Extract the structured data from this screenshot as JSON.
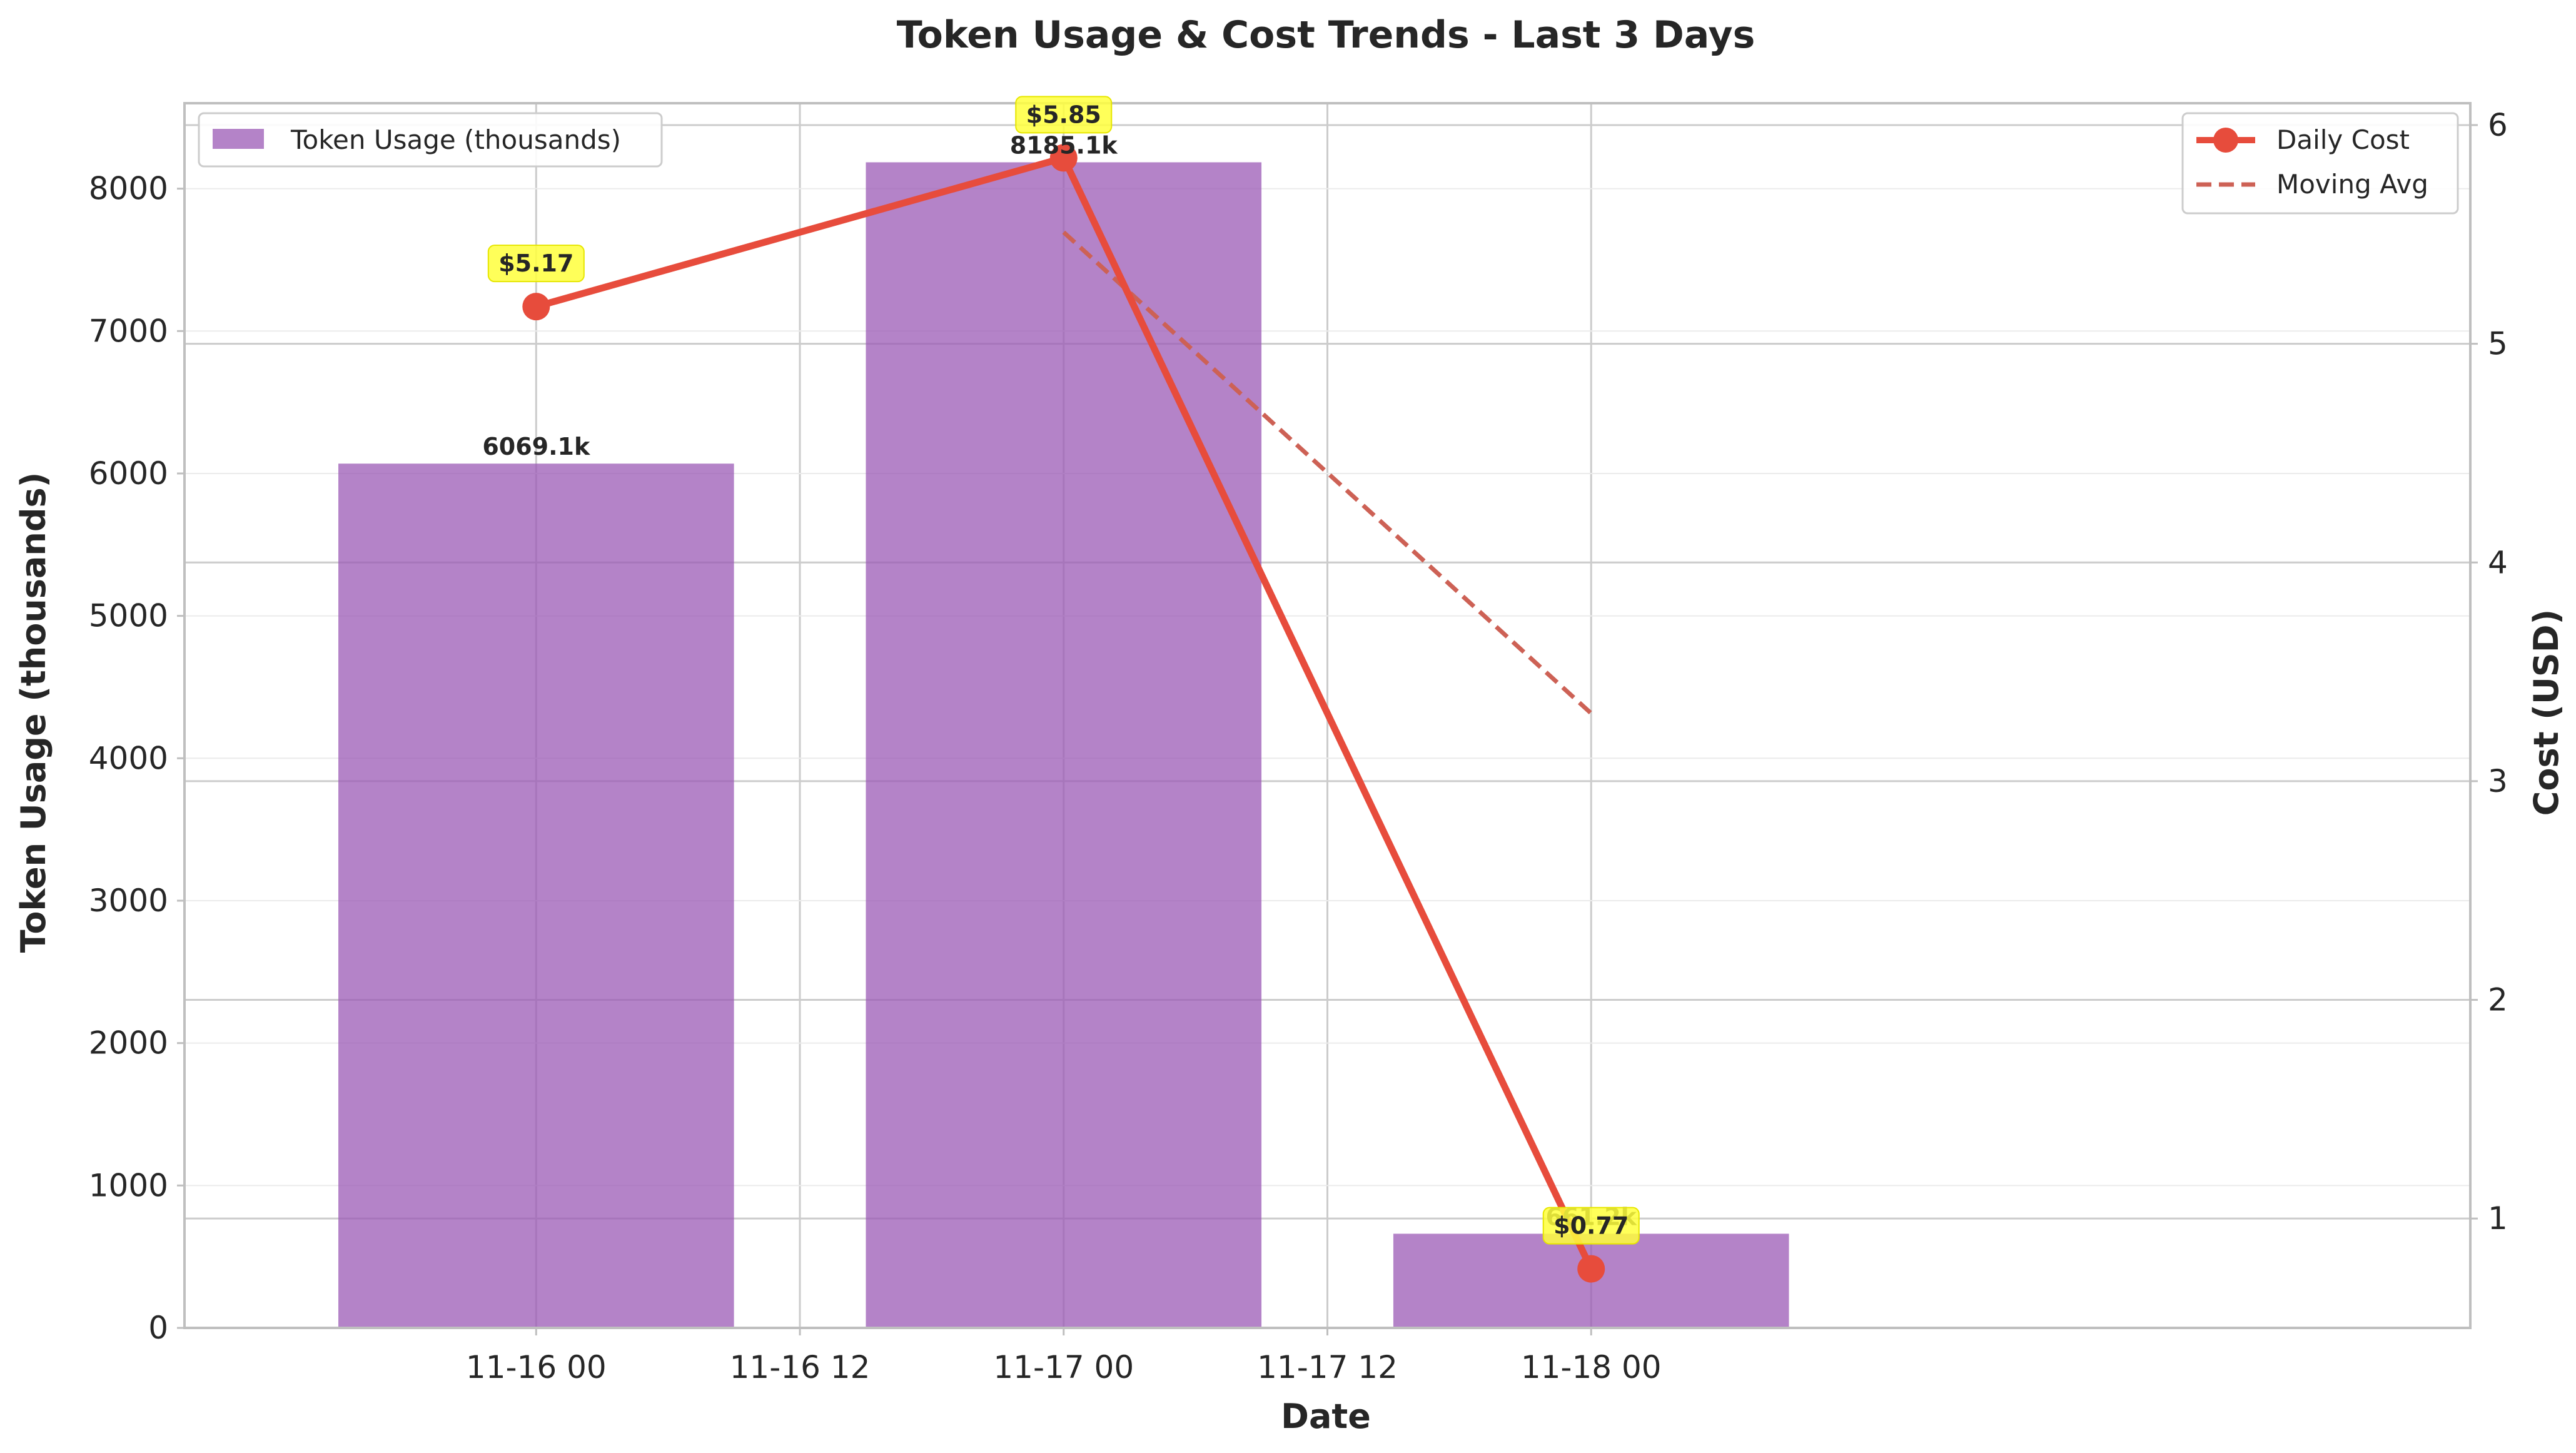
{
  "chart_data": {
    "type": "bar+line",
    "title": "Token Usage & Cost Trends - Last 3 Days",
    "xlabel": "Date",
    "ylabel_left": "Token Usage (thousands)",
    "ylabel_right": "Cost (USD)",
    "x_range_hours": [
      -16,
      88
    ],
    "x_ticks": [
      {
        "label": "11-16 00",
        "hour": 0
      },
      {
        "label": "11-16 12",
        "hour": 12
      },
      {
        "label": "11-17 00",
        "hour": 24
      },
      {
        "label": "11-17 12",
        "hour": 36
      },
      {
        "label": "11-18 00",
        "hour": 48
      }
    ],
    "y_left": {
      "lim": [
        0,
        8600
      ],
      "ticks": [
        0,
        1000,
        2000,
        3000,
        4000,
        5000,
        6000,
        7000,
        8000
      ]
    },
    "y_right": {
      "lim": [
        0.5,
        6.1
      ],
      "ticks": [
        1,
        2,
        3,
        4,
        5,
        6
      ]
    },
    "bars": {
      "name": "Token Usage (thousands)",
      "color": "#9b59b6",
      "x_hours": [
        0,
        24,
        48
      ],
      "values": [
        6069.1,
        8185.1,
        661.2
      ],
      "labels": [
        "6069.1k",
        "8185.1k",
        "661.2k"
      ]
    },
    "daily_cost": {
      "name": "Daily Cost",
      "color": "#e74c3c",
      "x_hours": [
        0,
        24,
        48
      ],
      "values": [
        5.17,
        5.85,
        0.77
      ],
      "labels": [
        "$5.17",
        "$5.85",
        "$0.77"
      ]
    },
    "moving_avg": {
      "name": "Moving Avg",
      "color": "#cd6155",
      "x_hours": [
        24,
        48
      ],
      "values": [
        5.51,
        3.31
      ]
    },
    "legend_left": "upper left",
    "legend_right": "upper right",
    "grid": true
  }
}
